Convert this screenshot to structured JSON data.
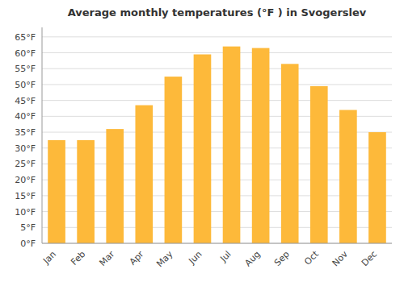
{
  "chart_data": {
    "type": "bar",
    "title": "Average monthly temperatures (°F ) in Svogerslev",
    "categories": [
      "Jan",
      "Feb",
      "Mar",
      "Apr",
      "May",
      "Jun",
      "Jul",
      "Aug",
      "Sep",
      "Oct",
      "Nov",
      "Dec"
    ],
    "values": [
      32.5,
      32.5,
      36.0,
      43.5,
      52.5,
      59.5,
      62.0,
      61.5,
      56.5,
      49.5,
      42.0,
      35.0
    ],
    "color": "#FDB93A",
    "ylim": [
      0,
      68
    ],
    "yticks": [
      {
        "value": 0,
        "label": "0°F"
      },
      {
        "value": 5,
        "label": "5°F"
      },
      {
        "value": 10,
        "label": "10°F"
      },
      {
        "value": 15,
        "label": "15°F"
      },
      {
        "value": 20,
        "label": "20°F"
      },
      {
        "value": 25,
        "label": "25°F"
      },
      {
        "value": 30,
        "label": "30°F"
      },
      {
        "value": 35,
        "label": "35°F"
      },
      {
        "value": 40,
        "label": "40°F"
      },
      {
        "value": 45,
        "label": "45°F"
      },
      {
        "value": 50,
        "label": "50°F"
      },
      {
        "value": 55,
        "label": "55°F"
      },
      {
        "value": 60,
        "label": "60°F"
      },
      {
        "value": 65,
        "label": "65°F"
      }
    ],
    "grid": true
  }
}
